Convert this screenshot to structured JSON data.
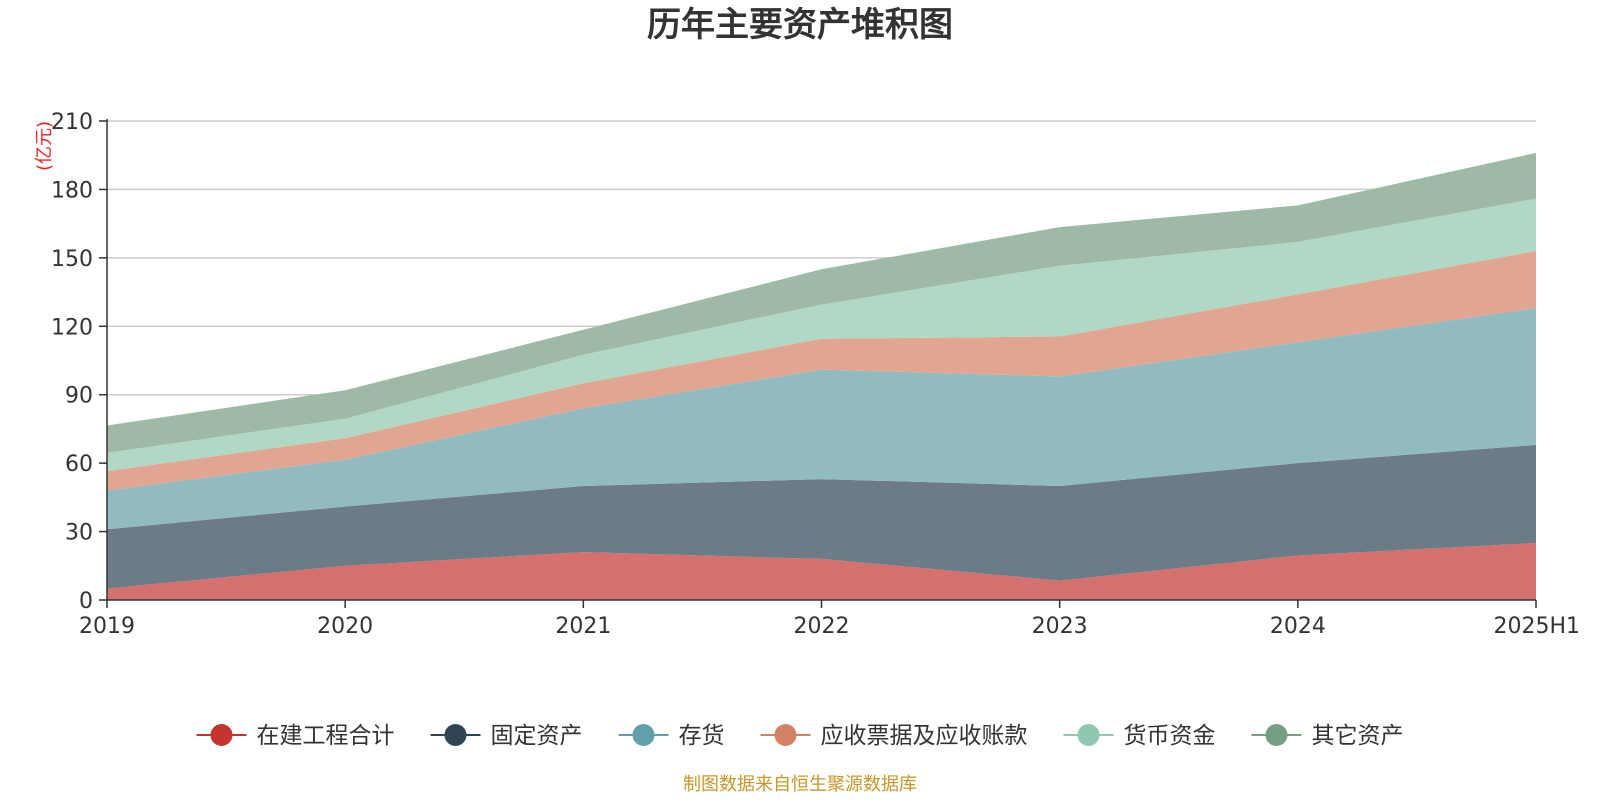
{
  "chart_data": {
    "type": "area",
    "stacked": true,
    "title": "历年主要资产堆积图",
    "y_unit_label": "(亿元)",
    "source_note": "制图数据来自恒生聚源数据库",
    "x": [
      "2019",
      "2020",
      "2021",
      "2022",
      "2023",
      "2024",
      "2025H1"
    ],
    "ylim": [
      0,
      210
    ],
    "yticks": [
      0,
      30,
      60,
      90,
      120,
      150,
      180,
      210
    ],
    "grid": true,
    "legend_position": "bottom",
    "series": [
      {
        "name": "在建工程合计",
        "color": "#c23531",
        "fill": "#d4706d",
        "values": [
          5,
          15,
          21,
          18,
          8.5,
          19.5,
          25
        ]
      },
      {
        "name": "固定资产",
        "color": "#2f4554",
        "fill": "#6d7b86",
        "values": [
          26,
          26,
          29,
          35,
          41.5,
          40.5,
          43
        ]
      },
      {
        "name": "存货",
        "color": "#61a0a8",
        "fill": "#91bbc1",
        "values": [
          17,
          20.5,
          34,
          48,
          48,
          53,
          60
        ]
      },
      {
        "name": "应收票据及应收账款",
        "color": "#d48265",
        "fill": "#e0a692",
        "values": [
          8.5,
          9.5,
          11,
          13.5,
          17.5,
          21,
          25
        ]
      },
      {
        "name": "货币资金",
        "color": "#91c7ae",
        "fill": "#b1d7c5",
        "values": [
          8,
          8.5,
          12.5,
          15,
          31,
          23,
          23
        ]
      },
      {
        "name": "其它资产",
        "color": "#749f83",
        "fill": "#9ebaa7",
        "values": [
          12,
          12.5,
          11,
          15.5,
          17,
          16,
          20
        ]
      }
    ]
  }
}
